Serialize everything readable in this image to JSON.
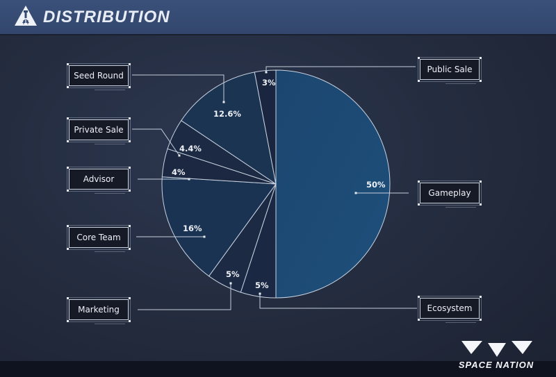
{
  "header": {
    "title": "DISTRIBUTION",
    "logo_icon": "rocket-triangle-logo"
  },
  "brand": {
    "name": "SPACE NATION",
    "logo_icon": "space-nation-chevrons-logo"
  },
  "colors": {
    "header_bg": "#34496f",
    "background": "#252d40",
    "slice_major": "#1d4a72",
    "slice_dark": "#1c2a43",
    "slice_mid": "#1b3150",
    "outline": "#c8d2e0",
    "label_box_bg": "#161a27"
  },
  "chart_data": {
    "type": "pie",
    "title": "DISTRIBUTION",
    "start_angle": "12 o'clock, clockwise",
    "slices": [
      {
        "label": "Gameplay",
        "value": 50,
        "display": "50%"
      },
      {
        "label": "Ecosystem",
        "value": 5,
        "display": "5%"
      },
      {
        "label": "Marketing",
        "value": 5,
        "display": "5%"
      },
      {
        "label": "Core Team",
        "value": 16,
        "display": "16%"
      },
      {
        "label": "Advisor",
        "value": 4,
        "display": "4%"
      },
      {
        "label": "Private Sale",
        "value": 4.4,
        "display": "4.4%"
      },
      {
        "label": "Seed Round",
        "value": 12.6,
        "display": "12.6%"
      },
      {
        "label": "Public Sale",
        "value": 3,
        "display": "3%"
      }
    ],
    "legend_position": "callout boxes left and right of pie"
  },
  "labels": {
    "seed_round": "Seed Round",
    "private_sale": "Private Sale",
    "advisor": "Advisor",
    "core_team": "Core Team",
    "marketing": "Marketing",
    "public_sale": "Public Sale",
    "gameplay": "Gameplay",
    "ecosystem": "Ecosystem"
  },
  "percentages": {
    "seed_round": "12.6%",
    "private_sale": "4.4%",
    "advisor": "4%",
    "core_team": "16%",
    "marketing": "5%",
    "public_sale": "3%",
    "gameplay": "50%",
    "ecosystem": "5%"
  }
}
